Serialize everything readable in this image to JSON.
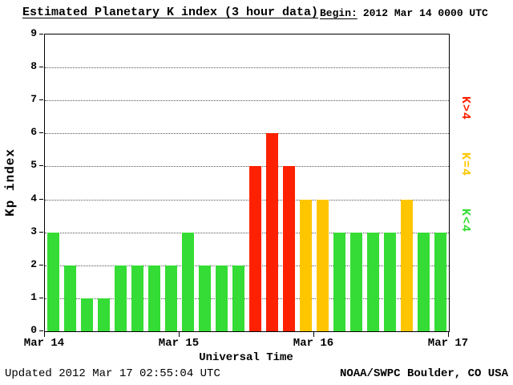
{
  "page": {
    "title": "Estimated Planetary K index (3 hour data)",
    "begin_label": "Begin:",
    "begin_value": "2012 Mar 14 0000 UTC"
  },
  "axes": {
    "ylabel": "Kp index",
    "xlabel": "Universal Time"
  },
  "footer": {
    "updated": "Updated 2012 Mar 17 02:55:04 UTC",
    "source": "NOAA/SWPC Boulder, CO USA"
  },
  "legend": [
    {
      "label": "K>4",
      "color": "#fe2100"
    },
    {
      "label": "K=4",
      "color": "#ffc600"
    },
    {
      "label": "K<4",
      "color": "#35dc35"
    }
  ],
  "chart_data": {
    "type": "bar",
    "title": "Estimated Planetary K index (3 hour data)",
    "begin": "2012 Mar 14 0000 UTC",
    "xlabel": "Universal Time",
    "ylabel": "Kp index",
    "ylim": [
      0,
      9
    ],
    "yticks": [
      0,
      1,
      2,
      3,
      4,
      5,
      6,
      7,
      8,
      9
    ],
    "grid": "dotted-horizontal-at-integers",
    "legend_position": "right",
    "interval_hours": 3,
    "xticklabels": [
      "Mar 14",
      "Mar 15",
      "Mar 16",
      "Mar 17"
    ],
    "days": [
      {
        "date": "Mar 14",
        "kp": [
          3,
          2,
          1,
          1,
          2,
          2,
          2,
          2
        ]
      },
      {
        "date": "Mar 15",
        "kp": [
          3,
          2,
          2,
          2,
          5,
          6,
          5,
          4
        ]
      },
      {
        "date": "Mar 16",
        "kp": [
          4,
          3,
          3,
          3,
          3,
          4,
          3,
          3
        ]
      }
    ],
    "values": [
      3,
      2,
      1,
      1,
      2,
      2,
      2,
      2,
      3,
      2,
      2,
      2,
      5,
      6,
      5,
      4,
      4,
      3,
      3,
      3,
      3,
      4,
      3,
      3
    ],
    "color_rule": {
      "gt4": "#fe2100",
      "eq4": "#ffc600",
      "lt4": "#35dc35"
    }
  }
}
